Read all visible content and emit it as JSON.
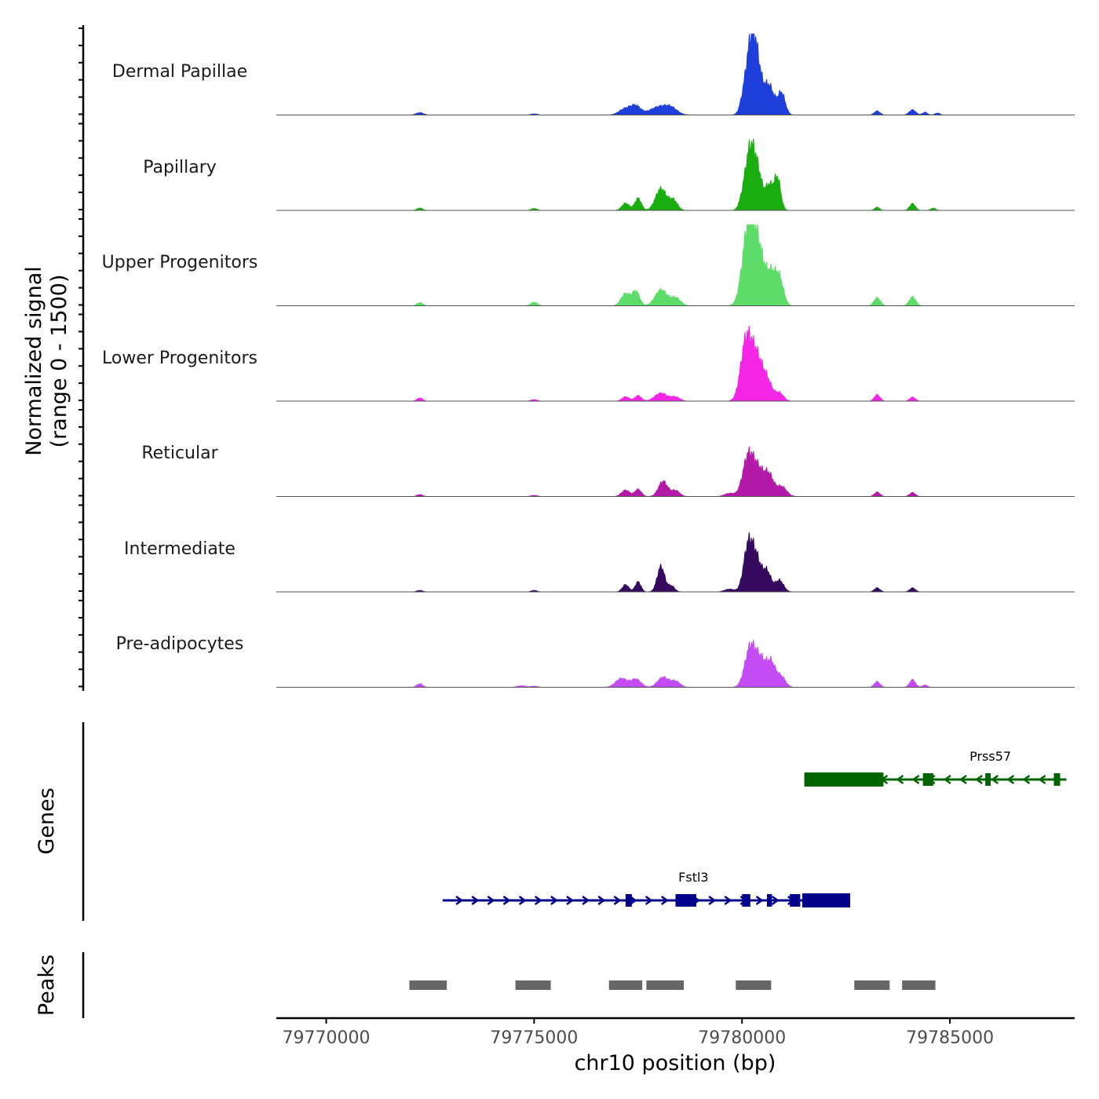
{
  "chart_data": {
    "type": "area",
    "title": "",
    "ylabel_line1": "Normalized signal",
    "ylabel_line2": "(range 0 - 1500)",
    "xlabel": "chr10 position (bp)",
    "xlim": [
      79768800,
      79788000
    ],
    "ylim": [
      0,
      1500
    ],
    "xticks": [
      79770000,
      79775000,
      79780000,
      79785000
    ],
    "xtick_labels": [
      "79770000",
      "79775000",
      "79780000",
      "79785000"
    ],
    "tracks": [
      {
        "name": "Dermal Papillae",
        "color": "#1f3fdb",
        "peaks": [
          [
            79772250,
            60,
            90
          ],
          [
            79775000,
            30,
            80
          ],
          [
            79777200,
            160,
            150
          ],
          [
            79777450,
            200,
            120
          ],
          [
            79778000,
            200,
            220
          ],
          [
            79778300,
            140,
            150
          ],
          [
            79780000,
            80,
            60
          ],
          [
            79780200,
            1500,
            130
          ],
          [
            79780350,
            1000,
            120
          ],
          [
            79780650,
            720,
            120
          ],
          [
            79780950,
            540,
            90
          ],
          [
            79783250,
            100,
            70
          ],
          [
            79784100,
            130,
            80
          ],
          [
            79784400,
            70,
            60
          ],
          [
            79784700,
            50,
            60
          ]
        ]
      },
      {
        "name": "Papillary",
        "color": "#1aad10",
        "peaks": [
          [
            79772250,
            60,
            70
          ],
          [
            79775000,
            50,
            70
          ],
          [
            79777200,
            180,
            90
          ],
          [
            79777500,
            300,
            80
          ],
          [
            79778050,
            540,
            130
          ],
          [
            79778350,
            250,
            100
          ],
          [
            79780000,
            150,
            80
          ],
          [
            79780200,
            1550,
            120
          ],
          [
            79780400,
            700,
            100
          ],
          [
            79780650,
            600,
            90
          ],
          [
            79780850,
            800,
            80
          ],
          [
            79783250,
            80,
            60
          ],
          [
            79784100,
            170,
            70
          ],
          [
            79784600,
            60,
            60
          ]
        ]
      },
      {
        "name": "Upper Progenitors",
        "color": "#5ddc6a",
        "peaks": [
          [
            79772250,
            80,
            70
          ],
          [
            79775000,
            90,
            80
          ],
          [
            79777200,
            300,
            110
          ],
          [
            79777450,
            350,
            90
          ],
          [
            79778050,
            400,
            140
          ],
          [
            79778400,
            200,
            120
          ],
          [
            79780150,
            1900,
            140
          ],
          [
            79780400,
            1300,
            140
          ],
          [
            79780700,
            700,
            110
          ],
          [
            79780900,
            650,
            100
          ],
          [
            79783250,
            200,
            80
          ],
          [
            79784100,
            220,
            80
          ]
        ]
      },
      {
        "name": "Lower Progenitors",
        "color": "#f425e4",
        "peaks": [
          [
            79772250,
            80,
            70
          ],
          [
            79775000,
            40,
            80
          ],
          [
            79777200,
            110,
            90
          ],
          [
            79777500,
            140,
            80
          ],
          [
            79778050,
            200,
            150
          ],
          [
            79778400,
            100,
            110
          ],
          [
            79780100,
            1500,
            130
          ],
          [
            79780350,
            1000,
            130
          ],
          [
            79780600,
            500,
            120
          ],
          [
            79780900,
            200,
            100
          ],
          [
            79783250,
            160,
            70
          ],
          [
            79784100,
            100,
            70
          ]
        ]
      },
      {
        "name": "Reticular",
        "color": "#b41aa8",
        "peaks": [
          [
            79772250,
            50,
            70
          ],
          [
            79775000,
            30,
            80
          ],
          [
            79777200,
            160,
            100
          ],
          [
            79777500,
            180,
            80
          ],
          [
            79778100,
            380,
            110
          ],
          [
            79778400,
            150,
            100
          ],
          [
            79779700,
            80,
            120
          ],
          [
            79780150,
            1000,
            130
          ],
          [
            79780400,
            600,
            130
          ],
          [
            79780650,
            500,
            110
          ],
          [
            79780950,
            250,
            120
          ],
          [
            79783250,
            110,
            70
          ],
          [
            79784100,
            100,
            70
          ]
        ]
      },
      {
        "name": "Intermediate",
        "color": "#350a5e",
        "peaks": [
          [
            79772250,
            40,
            70
          ],
          [
            79775000,
            40,
            70
          ],
          [
            79777200,
            180,
            80
          ],
          [
            79777500,
            250,
            70
          ],
          [
            79778050,
            630,
            90
          ],
          [
            79778300,
            150,
            80
          ],
          [
            79779700,
            70,
            120
          ],
          [
            79780150,
            1150,
            110
          ],
          [
            79780350,
            750,
            110
          ],
          [
            79780600,
            500,
            100
          ],
          [
            79780900,
            290,
            100
          ],
          [
            79783250,
            100,
            70
          ],
          [
            79784100,
            100,
            70
          ]
        ]
      },
      {
        "name": "Pre-adipocytes",
        "color": "#c44cf4",
        "peaks": [
          [
            79772250,
            90,
            70
          ],
          [
            79774700,
            40,
            100
          ],
          [
            79775000,
            30,
            80
          ],
          [
            79777100,
            220,
            140
          ],
          [
            79777450,
            200,
            120
          ],
          [
            79778100,
            250,
            130
          ],
          [
            79778400,
            150,
            110
          ],
          [
            79780200,
            1000,
            130
          ],
          [
            79780450,
            600,
            120
          ],
          [
            79780700,
            600,
            110
          ],
          [
            79780950,
            250,
            100
          ],
          [
            79783250,
            140,
            70
          ],
          [
            79784100,
            190,
            70
          ],
          [
            79784400,
            60,
            60
          ]
        ]
      }
    ],
    "genes": [
      {
        "name": "Prss57",
        "strand": "-",
        "color": "#006400",
        "start": 79781500,
        "end": 79787800,
        "exons": [
          [
            79781500,
            79783400
          ],
          [
            79784350,
            79784600
          ],
          [
            79785850,
            79785980
          ],
          [
            79787500,
            79787650
          ]
        ],
        "thick": [
          [
            79781500,
            79783400
          ]
        ]
      },
      {
        "name": "Fstl3",
        "strand": "+",
        "color": "#00008b",
        "start": 79772800,
        "end": 79782600,
        "exons": [
          [
            79777200,
            79777350
          ],
          [
            79778400,
            79778900
          ],
          [
            79780000,
            79780200
          ],
          [
            79780600,
            79780720
          ],
          [
            79781150,
            79781400
          ],
          [
            79781450,
            79782600
          ]
        ],
        "thick": [
          [
            79781450,
            79782600
          ]
        ]
      }
    ],
    "peaks_track": {
      "label": "Peaks",
      "color": "#666666",
      "regions": [
        [
          79772000,
          79772900
        ],
        [
          79774550,
          79775400
        ],
        [
          79776800,
          79777600
        ],
        [
          79777700,
          79778600
        ],
        [
          79779850,
          79780700
        ],
        [
          79782700,
          79783550
        ],
        [
          79783850,
          79784650
        ]
      ]
    },
    "panel_labels": {
      "genes": "Genes",
      "peaks": "Peaks"
    }
  }
}
